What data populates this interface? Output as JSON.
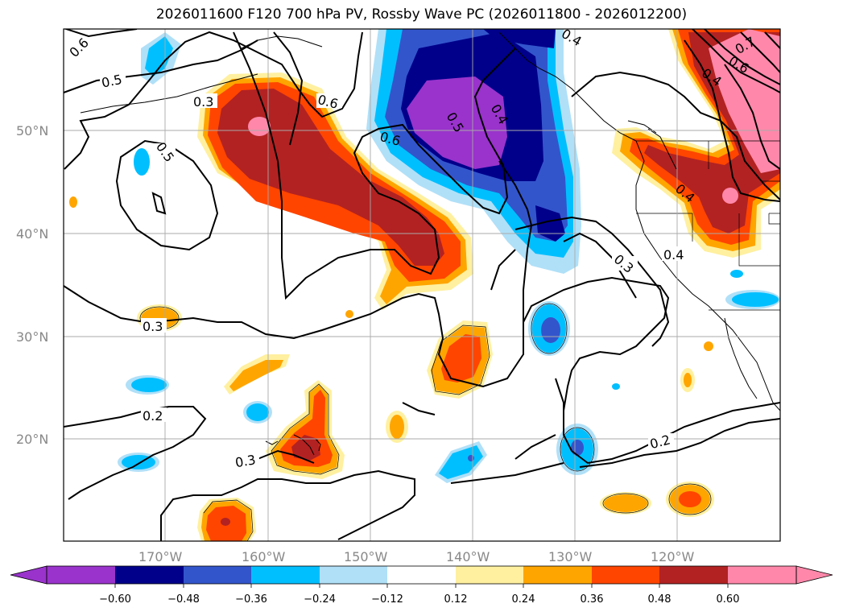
{
  "title": "2026011600 F120 700 hPa PV, Rossby Wave PC (2026011800 - 2026012200)",
  "map": {
    "lat_labels": [
      "50°N",
      "40°N",
      "30°N",
      "20°N"
    ],
    "lon_labels": [
      "170°W",
      "160°W",
      "150°W",
      "140°W",
      "130°W",
      "120°W"
    ],
    "contour_labels": [
      "0.6",
      "0.5",
      "0.3",
      "0.5",
      "0.6",
      "0.6",
      "0.5",
      "0.4",
      "0.4",
      "0.7",
      "0.6",
      "0.4",
      "0.4",
      "0.4",
      "0.3",
      "0.3",
      "0.2",
      "0.3",
      "0.2"
    ],
    "colors": {
      "neg_strongest": "#9933cc",
      "neg_strong": "#00008b",
      "neg_mid": "#3355cc",
      "neg_weak": "#00bfff",
      "neg_weakest": "#b0e0f8",
      "pos_weakest": "#fff0a0",
      "pos_weak": "#ffa500",
      "pos_mid": "#ff4500",
      "pos_strong": "#b22222",
      "pos_strongest": "#ff88aa"
    }
  },
  "colorbar": {
    "ticks": [
      "−0.60",
      "−0.48",
      "−0.36",
      "−0.24",
      "−0.12",
      "0.12",
      "0.24",
      "0.36",
      "0.48",
      "0.60"
    ],
    "colors": [
      "#9933cc",
      "#00008b",
      "#3355cc",
      "#00bfff",
      "#b0e0f8",
      "#ffffff",
      "#fff0a0",
      "#ffa500",
      "#ff4500",
      "#b22222",
      "#ff88aa"
    ]
  }
}
